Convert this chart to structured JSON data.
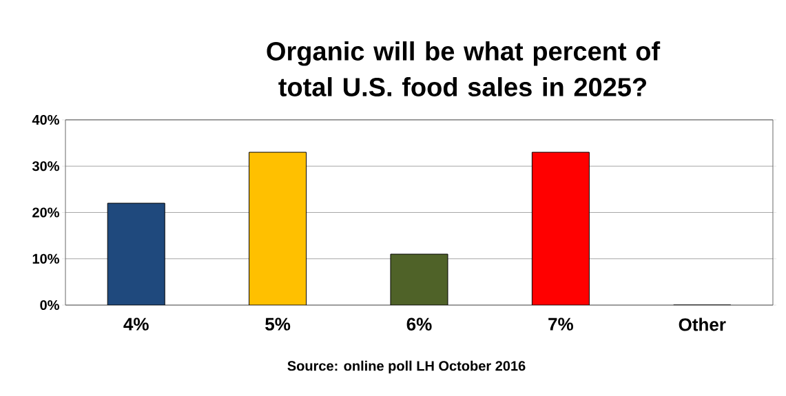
{
  "chart_data": {
    "type": "bar",
    "title": "Organic will be what percent of total U.S. food sales in 2025?",
    "categories": [
      "4%",
      "5%",
      "6%",
      "7%",
      "Other"
    ],
    "values": [
      22,
      33,
      11,
      33,
      0
    ],
    "colors": [
      "#1f497d",
      "#ffc000",
      "#4f6228",
      "#ff0000",
      "#1f497d"
    ],
    "ylim": [
      0,
      40
    ],
    "yticks": [
      {
        "value": 0,
        "label": "0%"
      },
      {
        "value": 10,
        "label": "10%"
      },
      {
        "value": 20,
        "label": "20%"
      },
      {
        "value": 30,
        "label": "30%"
      },
      {
        "value": 40,
        "label": "40%"
      }
    ],
    "grid": "y",
    "annotations": [
      "Source:  online poll LH October 2016"
    ]
  }
}
